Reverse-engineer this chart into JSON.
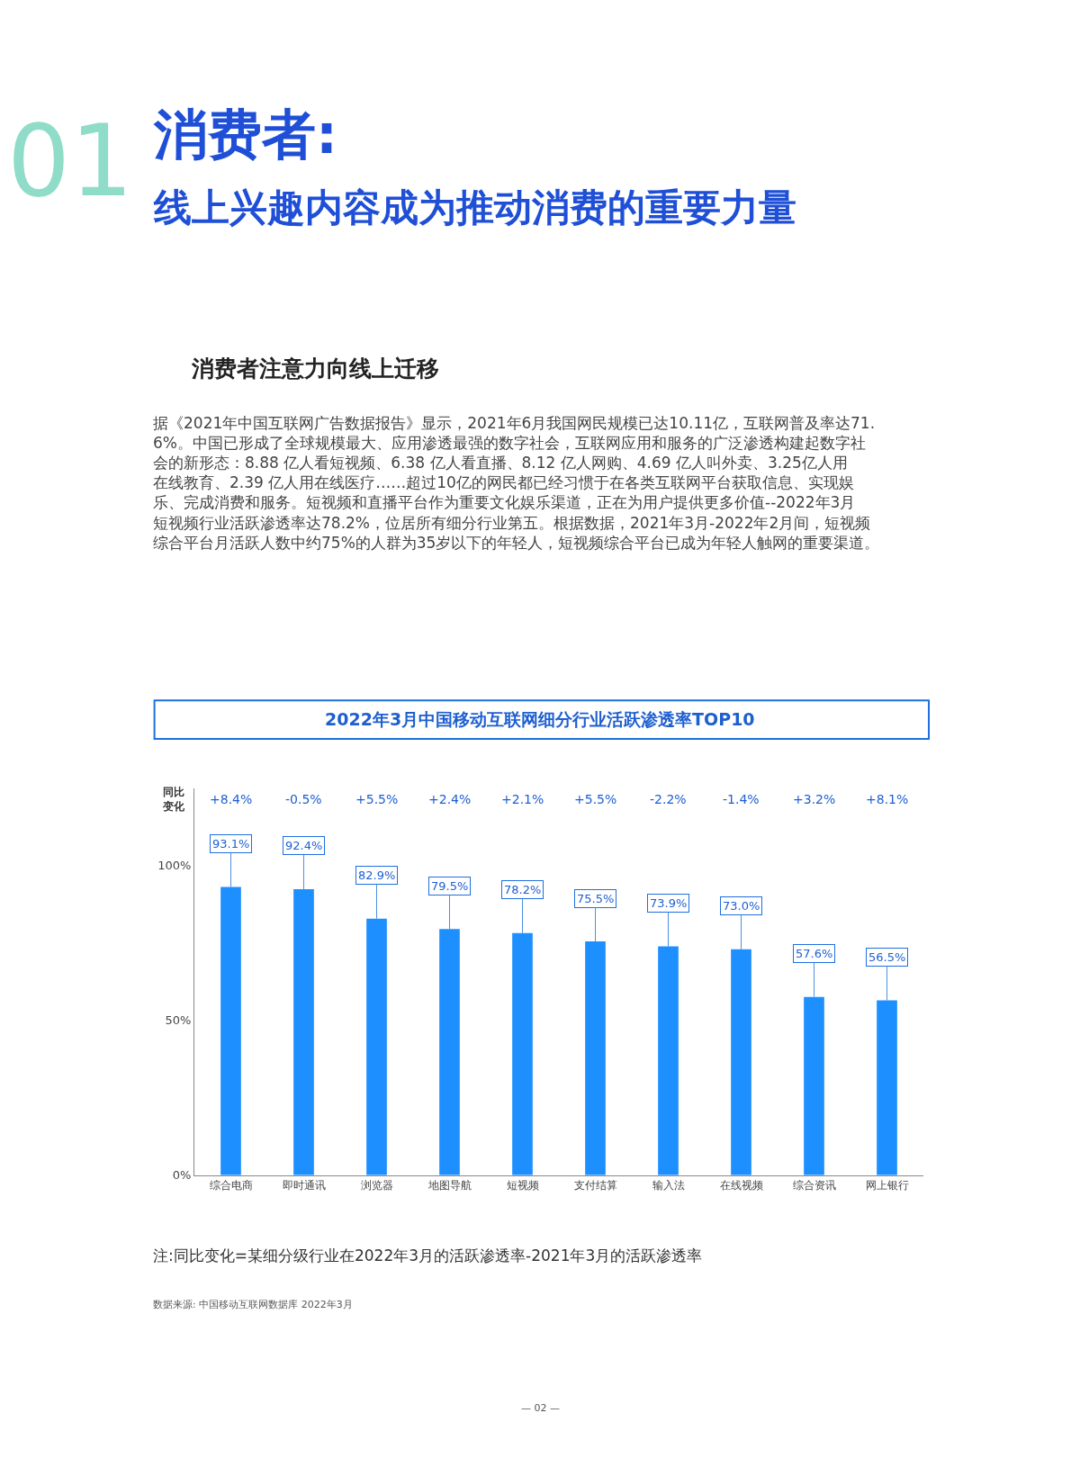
{
  "chart_data": {
    "type": "bar",
    "title": "2022年3月中国移动互联网细分行业活跃渗透率TOP10",
    "categories": [
      "综合电商",
      "即时通讯",
      "浏览器",
      "地图导航",
      "短视频",
      "支付结算",
      "输入法",
      "在线视频",
      "综合资讯",
      "网上银行"
    ],
    "values": [
      93.1,
      92.4,
      82.9,
      79.5,
      78.2,
      75.5,
      73.9,
      73.0,
      57.6,
      56.5
    ],
    "value_labels": [
      "93.1%",
      "92.4%",
      "82.9%",
      "79.5%",
      "78.2%",
      "75.5%",
      "73.9%",
      "73.0%",
      "57.6%",
      "56.5%"
    ],
    "color": "#1e8fff",
    "ylim": [
      0,
      125
    ],
    "yticks": [
      {
        "value": 0,
        "label": "0%"
      },
      {
        "value": 50,
        "label": "50%"
      },
      {
        "value": 100,
        "label": "100%"
      }
    ],
    "annotations": [
      "01",
      "消费者:",
      "线上兴趣内容成为推动消费的重要力量",
      "消费者注意力向线上迁移",
      "据《2021年中国互联网广告数据报告》显示，2021年6月我国网民规模已达10.11亿，互联网普及率达71.6%。中国已形成了全球规模最大、应用渗透最强的数字社会，互联网应用和服务的广泛渗透构建起数字社会的新形态：8.88 亿人看短视频、6.38 亿人看直播、8.12 亿人网购、4.69 亿人叫外卖、3.25亿人用在线教育、2.39 亿人用在线医疗……超过10亿的网民都已经习惯于在各类互联网平台获取信息、实现娱乐、完成消费和服务。短视频和直播平台作为重要文化娱乐渠道，正在为用户提供更多价值--2022年3月短视频行业活跃渗透率达78.2%，位居所有细分行业第五。根据数据，2021年3月-2022年2月间，短视频综合平台月活跃人数中约75%的人群为35岁以下的年轻人，短视频综合平台已成为年轻人触网的重要渠道。",
      "同比变化",
      "+8.4%",
      "-0.5%",
      "+5.5%",
      "+2.4%",
      "+2.1%",
      "+5.5%",
      "-2.2%",
      "-1.4%",
      "+3.2%",
      "+8.1%",
      "注:同比变化=某细分级行业在2022年3月的活跃渗透率-2021年3月的活跃渗透率",
      "数据来源: 中国移动互联网数据库 2022年3月",
      "— 02 —"
    ]
  }
}
